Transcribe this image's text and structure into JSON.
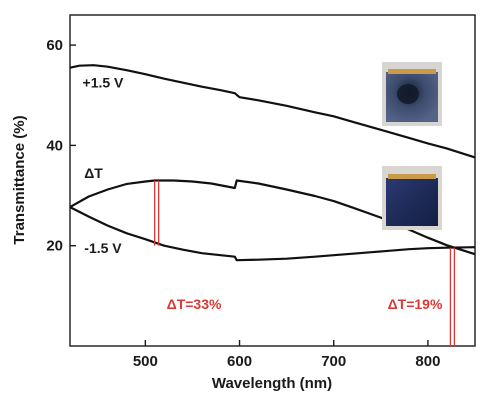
{
  "chart_data": {
    "type": "line",
    "xlabel": "Wavelength (nm)",
    "ylabel": "Transmittance (%)",
    "xlim": [
      420,
      850
    ],
    "ylim": [
      0,
      66
    ],
    "x_ticks": [
      500,
      600,
      700,
      800
    ],
    "y_ticks": [
      20,
      40,
      60
    ],
    "grid": false,
    "series": [
      {
        "name": "+1.5 V",
        "color": "#111111",
        "points": [
          [
            420,
            55.5
          ],
          [
            430,
            55.9
          ],
          [
            445,
            56.0
          ],
          [
            460,
            55.7
          ],
          [
            480,
            55.0
          ],
          [
            500,
            54.2
          ],
          [
            520,
            53.3
          ],
          [
            540,
            52.5
          ],
          [
            560,
            51.7
          ],
          [
            580,
            51.0
          ],
          [
            595,
            50.4
          ],
          [
            600,
            49.6
          ],
          [
            620,
            49.0
          ],
          [
            650,
            47.9
          ],
          [
            680,
            46.6
          ],
          [
            700,
            45.8
          ],
          [
            720,
            44.7
          ],
          [
            750,
            43.1
          ],
          [
            780,
            41.5
          ],
          [
            800,
            40.4
          ],
          [
            820,
            39.4
          ],
          [
            850,
            37.6
          ]
        ]
      },
      {
        "name": "-1.5 V",
        "color": "#111111",
        "points": [
          [
            420,
            27.7
          ],
          [
            440,
            25.8
          ],
          [
            460,
            24.0
          ],
          [
            480,
            22.5
          ],
          [
            500,
            21.3
          ],
          [
            520,
            20.0
          ],
          [
            540,
            19.2
          ],
          [
            560,
            18.5
          ],
          [
            580,
            18.1
          ],
          [
            595,
            17.8
          ],
          [
            597,
            17.1
          ],
          [
            620,
            17.2
          ],
          [
            650,
            17.4
          ],
          [
            680,
            17.8
          ],
          [
            700,
            18.1
          ],
          [
            740,
            18.7
          ],
          [
            780,
            19.3
          ],
          [
            800,
            19.5
          ],
          [
            820,
            19.6
          ],
          [
            850,
            19.7
          ]
        ]
      },
      {
        "name": "ΔT",
        "color": "#111111",
        "points": [
          [
            420,
            27.7
          ],
          [
            440,
            29.8
          ],
          [
            460,
            31.2
          ],
          [
            480,
            32.3
          ],
          [
            500,
            32.8
          ],
          [
            510,
            33.0
          ],
          [
            530,
            33.0
          ],
          [
            550,
            32.8
          ],
          [
            570,
            32.4
          ],
          [
            595,
            31.5
          ],
          [
            597,
            33.0
          ],
          [
            620,
            32.4
          ],
          [
            650,
            31.2
          ],
          [
            680,
            29.9
          ],
          [
            700,
            28.9
          ],
          [
            720,
            27.6
          ],
          [
            750,
            25.6
          ],
          [
            780,
            23.2
          ],
          [
            800,
            21.6
          ],
          [
            820,
            20.1
          ],
          [
            850,
            18.3
          ]
        ]
      }
    ],
    "curve_labels": [
      {
        "text": "+1.5 V",
        "x": 455,
        "y": 51.5
      },
      {
        "text": "ΔT",
        "x": 445,
        "y": 33.5
      },
      {
        "text": "-1.5 V",
        "x": 455,
        "y": 18.5
      }
    ],
    "annotations": [
      {
        "text": "ΔT=33%",
        "x": 512,
        "from": 20.0,
        "to": 33.0,
        "color": "#d93a35"
      },
      {
        "text": "ΔT=19%",
        "x": 826,
        "from": 0,
        "to": 19.6,
        "color": "#d93a35"
      }
    ],
    "inset_images": [
      {
        "name": "photo-bleached-state",
        "description_color": "#3b4a6d"
      },
      {
        "name": "photo-colored-state",
        "description_color": "#1d2a56"
      }
    ]
  }
}
